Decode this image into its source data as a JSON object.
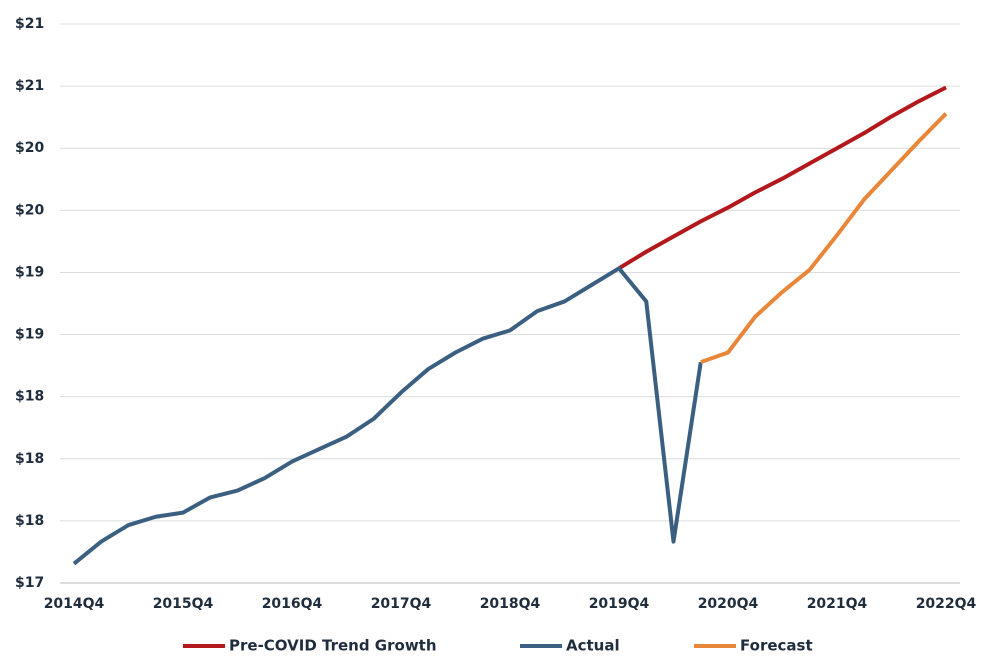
{
  "chart_data": {
    "type": "line",
    "categories": [
      "2014Q4",
      null,
      null,
      null,
      "2015Q4",
      null,
      null,
      null,
      "2016Q4",
      null,
      null,
      null,
      "2017Q4",
      null,
      null,
      null,
      "2018Q4",
      null,
      null,
      null,
      "2019Q4",
      null,
      null,
      null,
      "2020Q4",
      null,
      null,
      null,
      "2021Q4",
      null,
      null,
      null,
      "2022Q4"
    ],
    "series": [
      {
        "name": "Pre-COVID Trend Growth",
        "color": "#b3181c",
        "values": [
          null,
          null,
          null,
          null,
          null,
          null,
          null,
          null,
          null,
          null,
          null,
          null,
          null,
          null,
          null,
          null,
          null,
          null,
          null,
          null,
          19.38,
          19.5,
          19.61,
          19.72,
          19.82,
          19.93,
          20.03,
          20.14,
          20.25,
          20.36,
          20.48,
          20.59,
          20.69
        ]
      },
      {
        "name": "Actual",
        "color": "#3b5f80",
        "values": [
          17.24,
          17.4,
          17.52,
          17.58,
          17.61,
          17.72,
          17.77,
          17.86,
          17.98,
          18.07,
          18.16,
          18.29,
          18.48,
          18.65,
          18.77,
          18.87,
          18.93,
          19.07,
          19.14,
          19.26,
          19.38,
          19.14,
          17.4,
          18.7,
          null,
          null,
          null,
          null,
          null,
          null,
          null,
          null,
          null
        ]
      },
      {
        "name": "Forecast",
        "color": "#e8873a",
        "values": [
          null,
          null,
          null,
          null,
          null,
          null,
          null,
          null,
          null,
          null,
          null,
          null,
          null,
          null,
          null,
          null,
          null,
          null,
          null,
          null,
          null,
          null,
          null,
          18.7,
          18.77,
          19.03,
          19.21,
          19.37,
          19.62,
          19.88,
          20.09,
          20.3,
          20.5
        ]
      }
    ],
    "ylim": [
      17.1,
      21.15
    ],
    "yticks": [
      {
        "value": 17.1,
        "label": "$17"
      },
      {
        "value": 17.55,
        "label": "$18"
      },
      {
        "value": 18.0,
        "label": "$18"
      },
      {
        "value": 18.45,
        "label": "$18"
      },
      {
        "value": 18.9,
        "label": "$19"
      },
      {
        "value": 19.35,
        "label": "$19"
      },
      {
        "value": 19.8,
        "label": "$20"
      },
      {
        "value": 20.25,
        "label": "$20"
      },
      {
        "value": 20.7,
        "label": "$21"
      },
      {
        "value": 21.15,
        "label": "$21"
      }
    ],
    "grid": true,
    "legend": "bottom"
  }
}
